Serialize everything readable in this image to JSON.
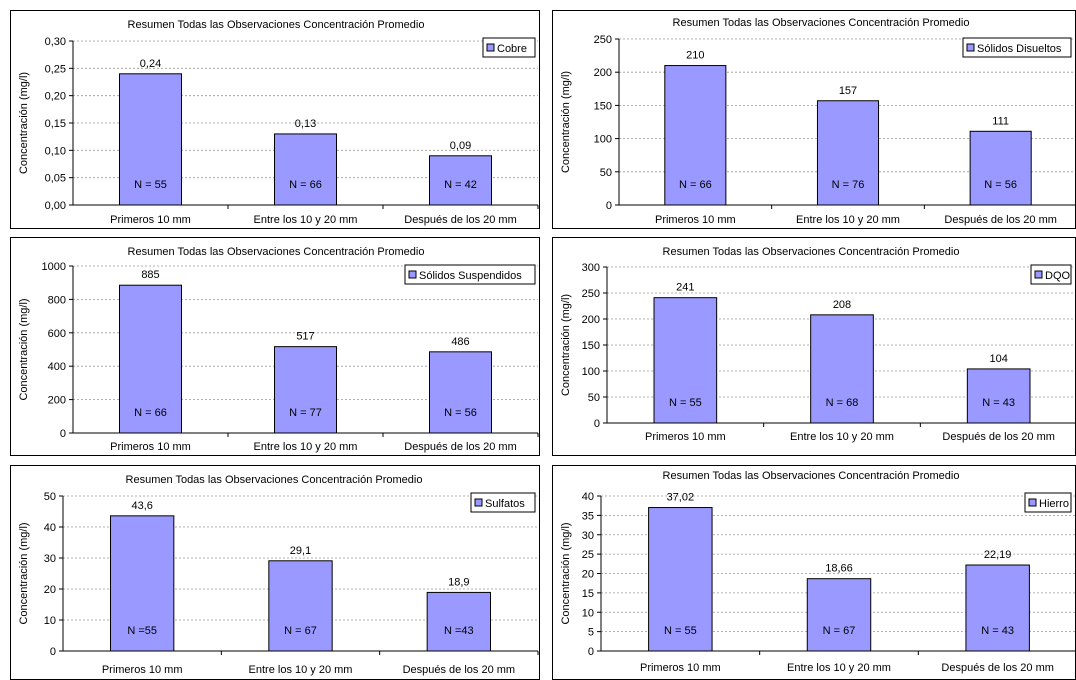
{
  "colors": {
    "bar": "#9999ff",
    "bar_stroke": "#000000",
    "grid": "#999999"
  },
  "chart_data": [
    {
      "type": "bar",
      "title": "Resumen Todas las Observaciones Concentración Promedio",
      "ylabel": "Concentración (mg/l)",
      "categories": [
        "Primeros 10 mm",
        "Entre los 10 y 20 mm",
        "Después de los 20 mm"
      ],
      "series": [
        {
          "name": "Cobre",
          "values": [
            0.24,
            0.13,
            0.09
          ]
        }
      ],
      "value_labels": [
        "0,24",
        "0,13",
        "0,09"
      ],
      "n_labels": [
        "N = 55",
        "N = 66",
        "N = 42"
      ],
      "ylim": [
        0,
        0.3
      ],
      "yticks": [
        "0,00",
        "0,05",
        "0,10",
        "0,15",
        "0,20",
        "0,25",
        "0,30"
      ],
      "grid": true,
      "legend": "top-right"
    },
    {
      "type": "bar",
      "title": "Resumen Todas las Observaciones Concentración Promedio",
      "ylabel": "Concentración (mg/l)",
      "categories": [
        "Primeros 10 mm",
        "Entre los 10 y 20 mm",
        "Después de los 20 mm"
      ],
      "series": [
        {
          "name": "Sólidos Disueltos",
          "values": [
            210,
            157,
            111
          ]
        }
      ],
      "value_labels": [
        "210",
        "157",
        "111"
      ],
      "n_labels": [
        "N = 66",
        "N = 76",
        "N = 56"
      ],
      "ylim": [
        0,
        250
      ],
      "yticks": [
        "0",
        "50",
        "100",
        "150",
        "200",
        "250"
      ],
      "grid": true,
      "legend": "top-right"
    },
    {
      "type": "bar",
      "title": "Resumen Todas las Observaciones Concentración Promedio",
      "ylabel": "Concentración (mg/l)",
      "categories": [
        "Primeros 10 mm",
        "Entre los 10 y 20 mm",
        "Después de los 20 mm"
      ],
      "series": [
        {
          "name": "Sólidos Suspendidos",
          "values": [
            885,
            517,
            486
          ]
        }
      ],
      "value_labels": [
        "885",
        "517",
        "486"
      ],
      "n_labels": [
        "N = 66",
        "N = 77",
        "N = 56"
      ],
      "ylim": [
        0,
        1000
      ],
      "yticks": [
        "0",
        "200",
        "400",
        "600",
        "800",
        "1000"
      ],
      "grid": true,
      "legend": "top-right"
    },
    {
      "type": "bar",
      "title": "Resumen Todas las Observaciones Concentración Promedio",
      "ylabel": "Concentración (mg/l)",
      "categories": [
        "Primeros 10 mm",
        "Entre los 10 y 20 mm",
        "Después de los 20 mm"
      ],
      "series": [
        {
          "name": "DQO",
          "values": [
            241,
            208,
            104
          ]
        }
      ],
      "value_labels": [
        "241",
        "208",
        "104"
      ],
      "n_labels": [
        "N = 55",
        "N = 68",
        "N = 43"
      ],
      "ylim": [
        0,
        300
      ],
      "yticks": [
        "0",
        "50",
        "100",
        "150",
        "200",
        "250",
        "300"
      ],
      "grid": true,
      "legend": "top-right"
    },
    {
      "type": "bar",
      "title": "Resumen Todas las Observaciones Concentración Promedio",
      "ylabel": "Concentración (mg/l)",
      "categories": [
        "Primeros 10 mm",
        "Entre los 10 y 20 mm",
        "Después de los 20 mm"
      ],
      "series": [
        {
          "name": "Sulfatos",
          "values": [
            43.6,
            29.1,
            18.9
          ]
        }
      ],
      "value_labels": [
        "43,6",
        "29,1",
        "18,9"
      ],
      "n_labels": [
        "N =55",
        "N = 67",
        "N =43"
      ],
      "ylim": [
        0,
        50
      ],
      "yticks": [
        "0",
        "10",
        "20",
        "30",
        "40",
        "50"
      ],
      "grid": true,
      "legend": "top-right"
    },
    {
      "type": "bar",
      "title": "Resumen Todas las Observaciones Concentración Promedio",
      "ylabel": "Concentración (mg/l)",
      "categories": [
        "Primeros 10 mm",
        "Entre los 10 y 20 mm",
        "Después de los 20 mm"
      ],
      "series": [
        {
          "name": "Hierro",
          "values": [
            37.02,
            18.66,
            22.19
          ]
        }
      ],
      "value_labels": [
        "37,02",
        "18,66",
        "22,19"
      ],
      "n_labels": [
        "N = 55",
        "N = 67",
        "N = 43"
      ],
      "ylim": [
        0,
        40
      ],
      "yticks": [
        "0",
        "5",
        "10",
        "15",
        "20",
        "25",
        "30",
        "35",
        "40"
      ],
      "grid": true,
      "legend": "top-right"
    }
  ]
}
